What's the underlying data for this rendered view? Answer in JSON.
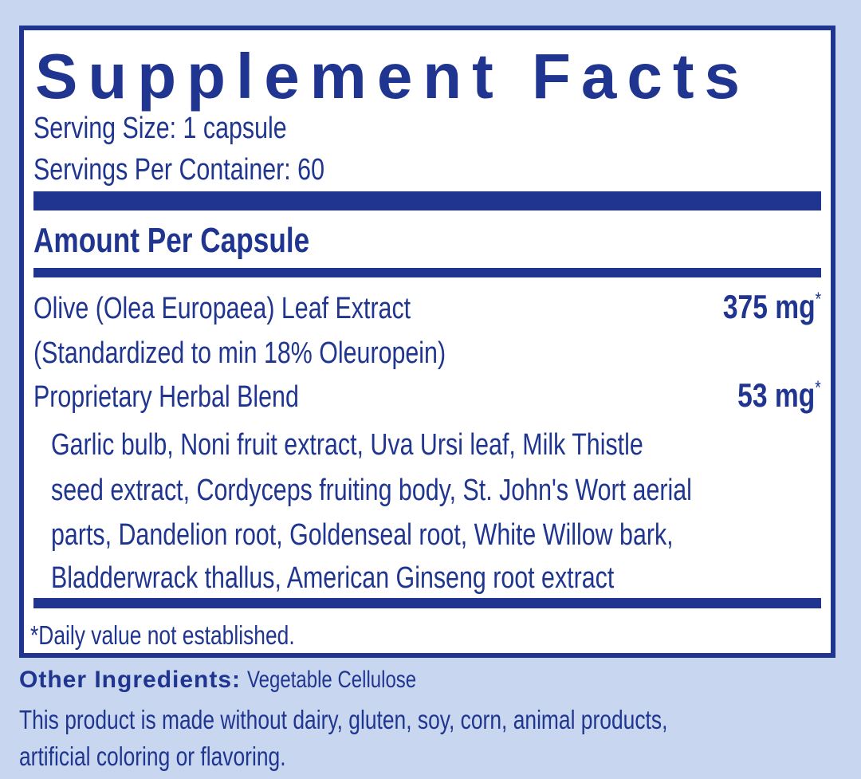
{
  "header": {
    "title": "Supplement Facts",
    "serving_size": "Serving Size: 1 capsule",
    "servings_per_container": "Servings Per Container: 60"
  },
  "amount_heading": "Amount Per Capsule",
  "ingredients": [
    {
      "name": "Olive (Olea Europaea) Leaf Extract",
      "detail": "(Standardized to min 18% Oleuropein)",
      "amount": "375 mg",
      "mark": "*"
    },
    {
      "name": "Proprietary Herbal Blend",
      "amount": "53 mg",
      "mark": "*",
      "components": [
        "Garlic bulb, Noni fruit extract, Uva Ursi leaf, Milk Thistle",
        "seed extract, Cordyceps fruiting body, St. John's Wort aerial",
        "parts, Dandelion root, Goldenseal root, White Willow bark,",
        "Bladderwrack thallus, American Ginseng root extract"
      ]
    }
  ],
  "footnote": "*Daily value not established.",
  "other_ingredients": {
    "label": "Other Ingredients:",
    "value": "Vegetable Cellulose"
  },
  "notes": [
    "This product is made without dairy, gluten, soy, corn, animal products,",
    "artificial coloring or flavoring."
  ]
}
